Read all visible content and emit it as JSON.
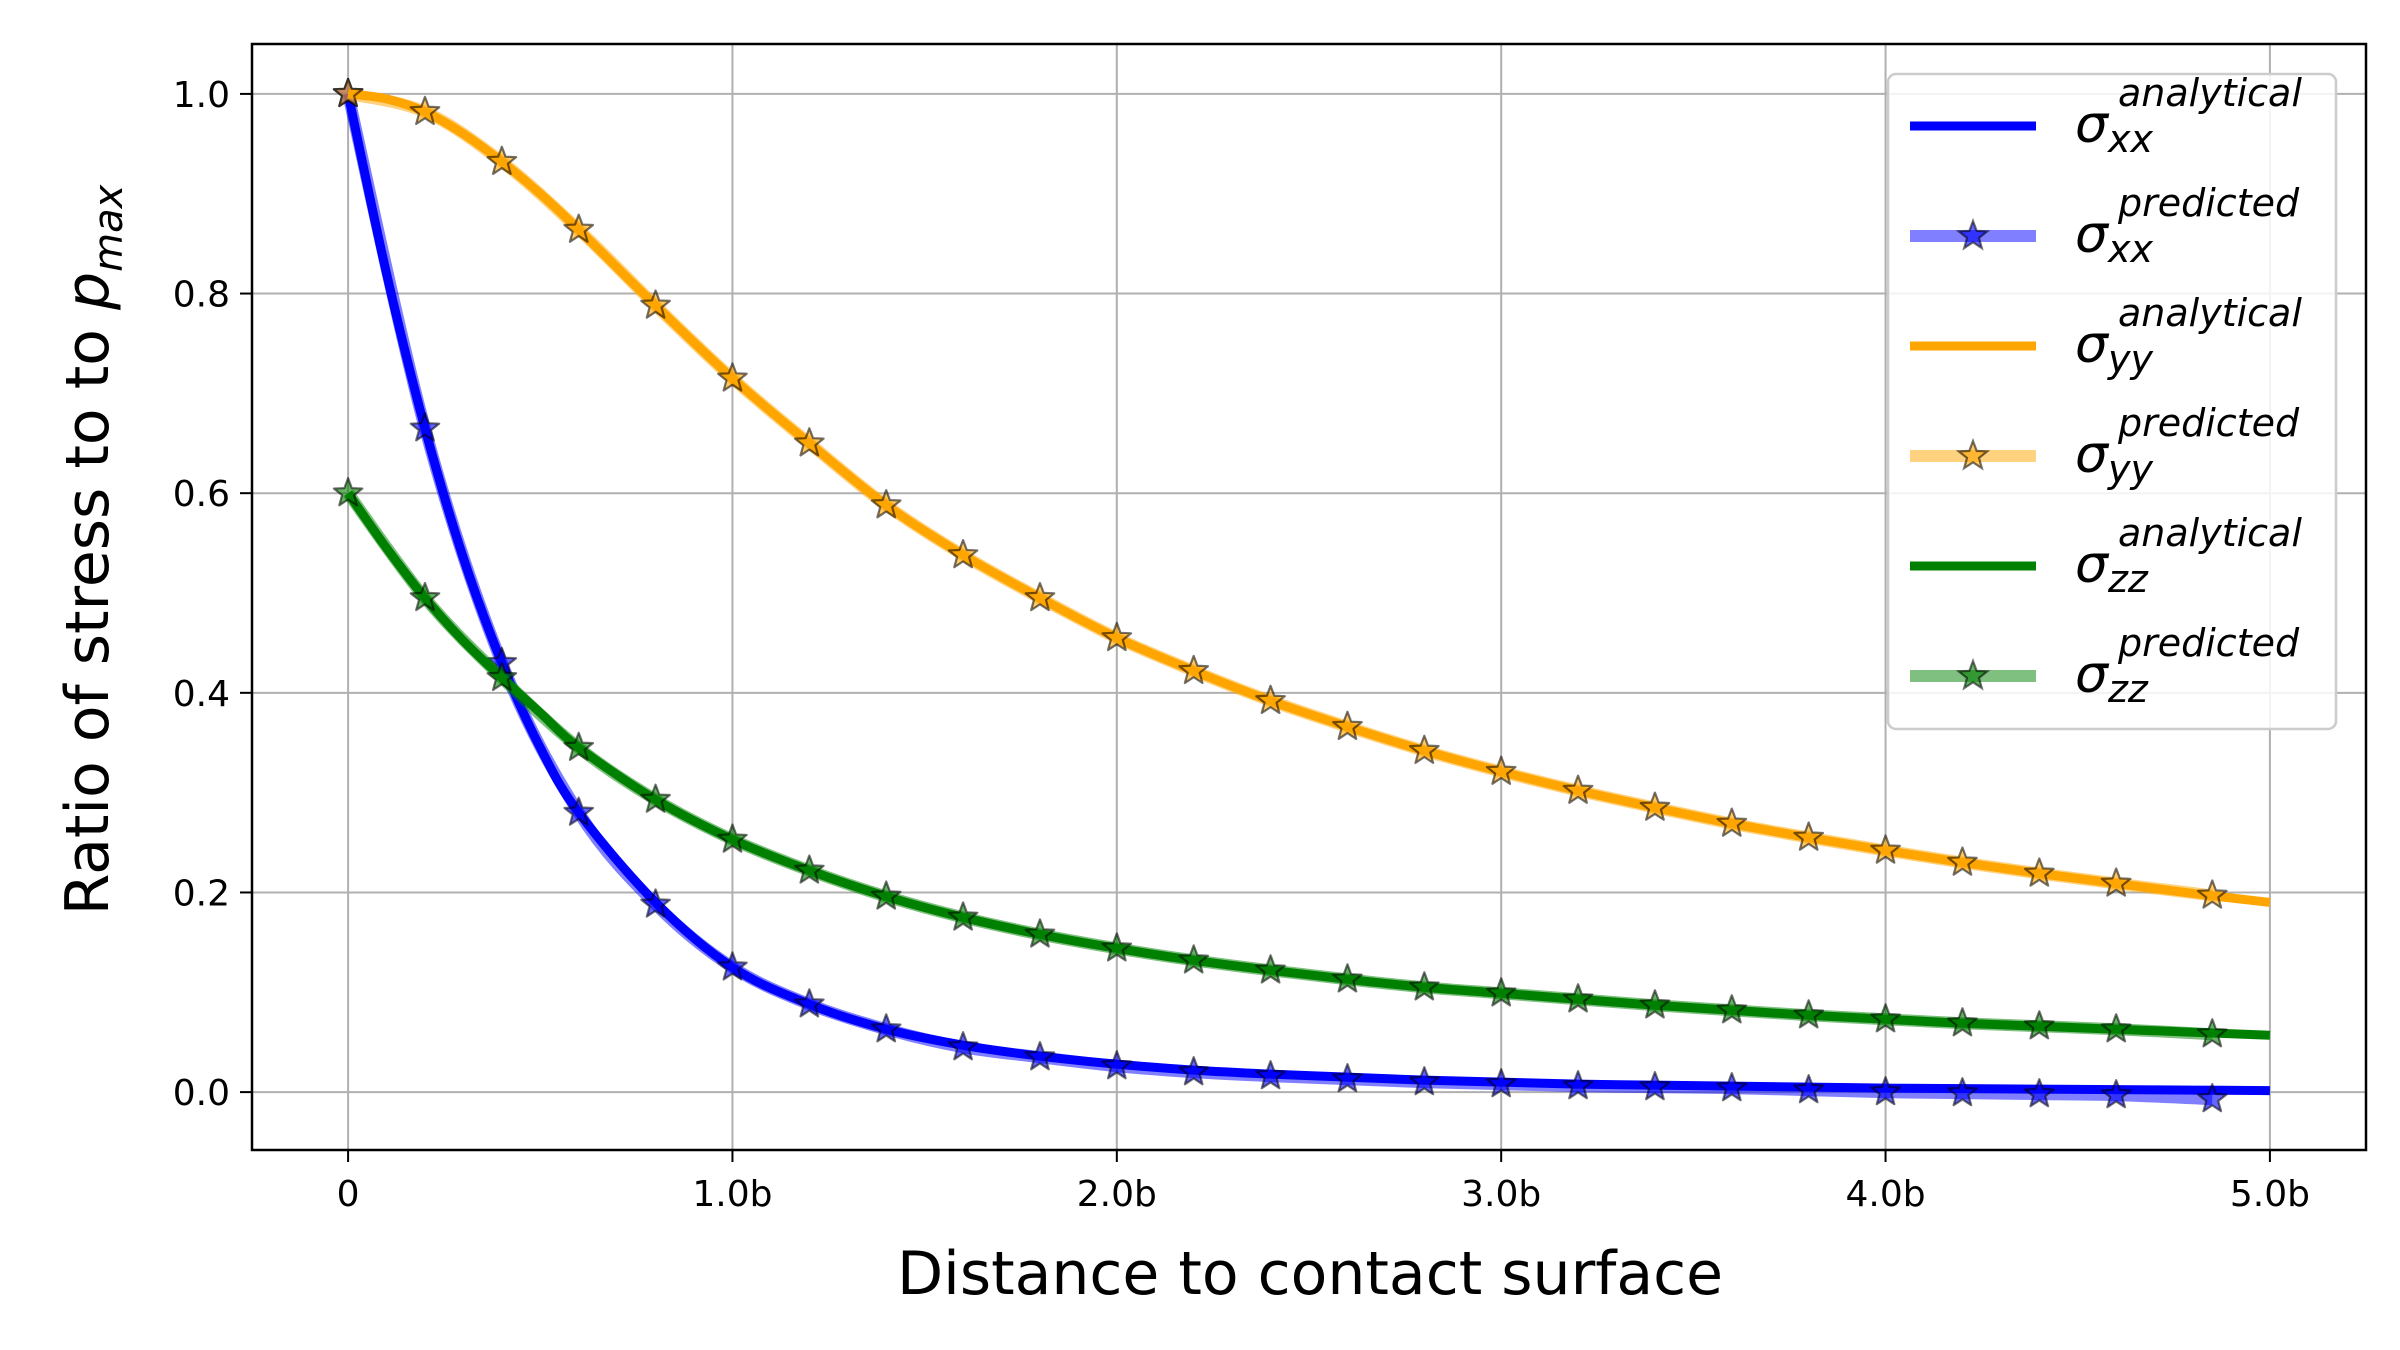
{
  "chart_data": {
    "type": "line",
    "xlabel": "Distance to contact surface",
    "ylabel": {
      "prefix": "Ratio of stress to to ",
      "symbol": "p",
      "subscript": "max"
    },
    "xlim": [
      -0.25,
      5.25
    ],
    "ylim": [
      -0.058,
      1.05
    ],
    "x_ticks": [
      {
        "value": 0,
        "label": "0"
      },
      {
        "value": 1,
        "label": "1.0b"
      },
      {
        "value": 2,
        "label": "2.0b"
      },
      {
        "value": 3,
        "label": "3.0b"
      },
      {
        "value": 4,
        "label": "4.0b"
      },
      {
        "value": 5,
        "label": "5.0b"
      }
    ],
    "y_ticks": [
      {
        "value": 0,
        "label": "0.0"
      },
      {
        "value": 0.2,
        "label": "0.2"
      },
      {
        "value": 0.4,
        "label": "0.4"
      },
      {
        "value": 0.6,
        "label": "0.6"
      },
      {
        "value": 0.8,
        "label": "0.8"
      },
      {
        "value": 1.0,
        "label": "1.0"
      }
    ],
    "grid": true,
    "legend_position": "top-right",
    "series": [
      {
        "name": "σ_xx^analytical",
        "symbol": "σ",
        "sub": "xx",
        "sup": "analytical",
        "color": "#0000ff",
        "style": "line",
        "x": [
          0,
          0.1,
          0.2,
          0.3,
          0.4,
          0.5,
          0.6,
          0.8,
          1.0,
          1.2,
          1.4,
          1.6,
          1.8,
          2.0,
          2.2,
          2.4,
          2.6,
          2.8,
          3.0,
          3.2,
          3.4,
          3.6,
          3.8,
          4.0,
          4.2,
          4.4,
          4.6,
          4.8,
          5.0
        ],
        "y": [
          1.0,
          0.82,
          0.665,
          0.535,
          0.43,
          0.345,
          0.28,
          0.19,
          0.125,
          0.088,
          0.063,
          0.047,
          0.036,
          0.028,
          0.022,
          0.018,
          0.015,
          0.012,
          0.01,
          0.008,
          0.007,
          0.006,
          0.005,
          0.004,
          0.0035,
          0.003,
          0.0025,
          0.002,
          0.0015
        ]
      },
      {
        "name": "σ_xx^predicted",
        "symbol": "σ",
        "sub": "xx",
        "sup": "predicted",
        "color": "#0000ff",
        "style": "markers",
        "x": [
          0,
          0.2,
          0.4,
          0.6,
          0.8,
          1.0,
          1.2,
          1.4,
          1.6,
          1.8,
          2.0,
          2.2,
          2.4,
          2.6,
          2.8,
          3.0,
          3.2,
          3.4,
          3.6,
          3.8,
          4.0,
          4.2,
          4.4,
          4.6,
          4.85
        ],
        "y": [
          1.0,
          0.665,
          0.43,
          0.28,
          0.188,
          0.125,
          0.088,
          0.063,
          0.045,
          0.035,
          0.026,
          0.02,
          0.016,
          0.013,
          0.01,
          0.008,
          0.006,
          0.005,
          0.004,
          0.002,
          0.0,
          -0.001,
          -0.002,
          -0.003,
          -0.007
        ]
      },
      {
        "name": "σ_yy^analytical",
        "symbol": "σ",
        "sub": "yy",
        "sup": "analytical",
        "color": "#ffa500",
        "style": "line",
        "x": [
          0,
          0.1,
          0.2,
          0.3,
          0.4,
          0.5,
          0.6,
          0.8,
          1.0,
          1.2,
          1.4,
          1.6,
          1.8,
          2.0,
          2.2,
          2.4,
          2.6,
          2.8,
          3.0,
          3.2,
          3.4,
          3.6,
          3.8,
          4.0,
          4.2,
          4.4,
          4.6,
          4.8,
          5.0
        ],
        "y": [
          1.0,
          0.995,
          0.982,
          0.96,
          0.932,
          0.9,
          0.864,
          0.788,
          0.715,
          0.65,
          0.588,
          0.538,
          0.495,
          0.455,
          0.422,
          0.392,
          0.366,
          0.342,
          0.321,
          0.302,
          0.285,
          0.269,
          0.255,
          0.242,
          0.23,
          0.219,
          0.209,
          0.199,
          0.19
        ]
      },
      {
        "name": "σ_yy^predicted",
        "symbol": "σ",
        "sub": "yy",
        "sup": "predicted",
        "color": "#ffa500",
        "style": "markers",
        "x": [
          0,
          0.2,
          0.4,
          0.6,
          0.8,
          1.0,
          1.2,
          1.4,
          1.6,
          1.8,
          2.0,
          2.2,
          2.4,
          2.6,
          2.8,
          3.0,
          3.2,
          3.4,
          3.6,
          3.8,
          4.0,
          4.2,
          4.4,
          4.6,
          4.85
        ],
        "y": [
          1.0,
          0.982,
          0.932,
          0.864,
          0.788,
          0.715,
          0.65,
          0.588,
          0.538,
          0.495,
          0.455,
          0.422,
          0.392,
          0.366,
          0.342,
          0.321,
          0.302,
          0.285,
          0.269,
          0.255,
          0.242,
          0.23,
          0.219,
          0.209,
          0.197
        ]
      },
      {
        "name": "σ_zz^analytical",
        "symbol": "σ",
        "sub": "zz",
        "sup": "analytical",
        "color": "#008000",
        "style": "line",
        "x": [
          0,
          0.1,
          0.2,
          0.3,
          0.4,
          0.5,
          0.6,
          0.8,
          1.0,
          1.2,
          1.4,
          1.6,
          1.8,
          2.0,
          2.2,
          2.4,
          2.6,
          2.8,
          3.0,
          3.2,
          3.4,
          3.6,
          3.8,
          4.0,
          4.2,
          4.4,
          4.6,
          4.8,
          5.0
        ],
        "y": [
          0.6,
          0.545,
          0.495,
          0.452,
          0.415,
          0.38,
          0.345,
          0.293,
          0.253,
          0.222,
          0.196,
          0.175,
          0.158,
          0.144,
          0.132,
          0.122,
          0.113,
          0.105,
          0.099,
          0.093,
          0.087,
          0.082,
          0.077,
          0.073,
          0.069,
          0.066,
          0.063,
          0.06,
          0.057
        ]
      },
      {
        "name": "σ_zz^predicted",
        "symbol": "σ",
        "sub": "zz",
        "sup": "predicted",
        "color": "#008000",
        "style": "markers",
        "x": [
          0,
          0.2,
          0.4,
          0.6,
          0.8,
          1.0,
          1.2,
          1.4,
          1.6,
          1.8,
          2.0,
          2.2,
          2.4,
          2.6,
          2.8,
          3.0,
          3.2,
          3.4,
          3.6,
          3.8,
          4.0,
          4.2,
          4.4,
          4.6,
          4.85
        ],
        "y": [
          0.6,
          0.495,
          0.415,
          0.345,
          0.293,
          0.253,
          0.222,
          0.196,
          0.175,
          0.158,
          0.144,
          0.132,
          0.122,
          0.113,
          0.105,
          0.099,
          0.093,
          0.087,
          0.082,
          0.077,
          0.073,
          0.069,
          0.066,
          0.063,
          0.058
        ]
      }
    ]
  }
}
